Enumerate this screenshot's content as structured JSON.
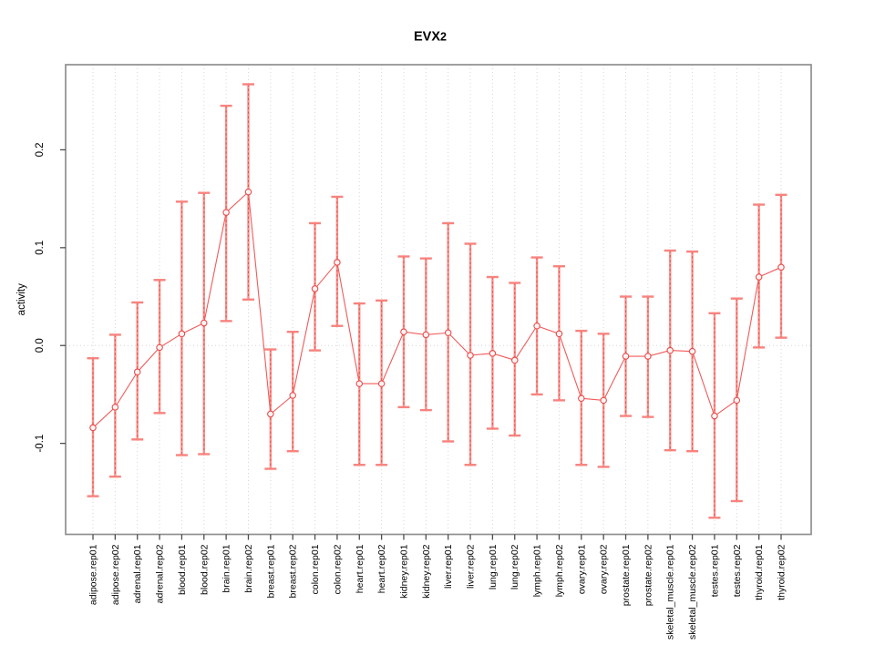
{
  "page": {
    "background": "#ffffff"
  },
  "chart_data": {
    "type": "line",
    "subtype": "points-with-error-bars",
    "title": "EVX2",
    "xlabel": "",
    "ylabel": "activity",
    "legend": "none",
    "grid": "vertical dotted gridline at every category; dotted horizontal line at y=0",
    "ylim": [
      -0.193,
      0.287
    ],
    "y_ticks": [
      {
        "value": -0.1,
        "label": "-0.1"
      },
      {
        "value": 0.0,
        "label": "0.0"
      },
      {
        "value": 0.1,
        "label": "0.1"
      },
      {
        "value": 0.2,
        "label": "0.2"
      }
    ],
    "categories": [
      "adipose.rep01",
      "adipose.rep02",
      "adrenal.rep01",
      "adrenal.rep02",
      "blood.rep01",
      "blood.rep02",
      "brain.rep01",
      "brain.rep02",
      "breast.rep01",
      "breast.rep02",
      "colon.rep01",
      "colon.rep02",
      "heart.rep01",
      "heart.rep02",
      "kidney.rep01",
      "kidney.rep02",
      "liver.rep01",
      "liver.rep02",
      "lung.rep01",
      "lung.rep02",
      "lymph.rep01",
      "lymph.rep02",
      "ovary.rep01",
      "ovary.rep02",
      "prostate.rep01",
      "prostate.rep02",
      "skeletal_muscle.rep01",
      "skeletal_muscle.rep02",
      "testes.rep01",
      "testes.rep02",
      "thyroid.rep01",
      "thyroid.rep02"
    ],
    "series": [
      {
        "name": "activity",
        "point_style": "open-circle",
        "values": [
          -0.084,
          -0.063,
          -0.027,
          -0.002,
          0.012,
          0.023,
          0.136,
          0.157,
          -0.07,
          -0.051,
          0.058,
          0.085,
          -0.039,
          -0.039,
          0.014,
          0.011,
          0.013,
          -0.01,
          -0.008,
          -0.015,
          0.02,
          0.012,
          -0.054,
          -0.056,
          -0.011,
          -0.011,
          -0.005,
          -0.006,
          -0.072,
          -0.056,
          0.07,
          0.08
        ],
        "ci_lower": [
          -0.154,
          -0.134,
          -0.096,
          -0.069,
          -0.112,
          -0.111,
          0.025,
          0.047,
          -0.126,
          -0.108,
          -0.005,
          0.02,
          -0.122,
          -0.122,
          -0.063,
          -0.066,
          -0.098,
          -0.122,
          -0.085,
          -0.092,
          -0.05,
          -0.056,
          -0.122,
          -0.124,
          -0.072,
          -0.073,
          -0.107,
          -0.108,
          -0.176,
          -0.159,
          -0.002,
          0.008
        ],
        "ci_upper": [
          -0.013,
          0.011,
          0.044,
          0.067,
          0.147,
          0.156,
          0.245,
          0.267,
          -0.004,
          0.014,
          0.125,
          0.152,
          0.043,
          0.046,
          0.091,
          0.089,
          0.125,
          0.104,
          0.07,
          0.064,
          0.09,
          0.081,
          0.015,
          0.012,
          0.05,
          0.05,
          0.097,
          0.096,
          0.033,
          0.048,
          0.144,
          0.154
        ]
      }
    ],
    "colors": {
      "point": "#e84f4f",
      "line": "#f05a5a",
      "errorbar_stem": "#f9928c",
      "errorbar_dash": "#e85050",
      "errorbar_cap": "#f8837e",
      "grid": "#d6d6d6",
      "axis_box": "#8f8f8f",
      "tick": "#4d4d4d",
      "text": "#000000"
    }
  }
}
